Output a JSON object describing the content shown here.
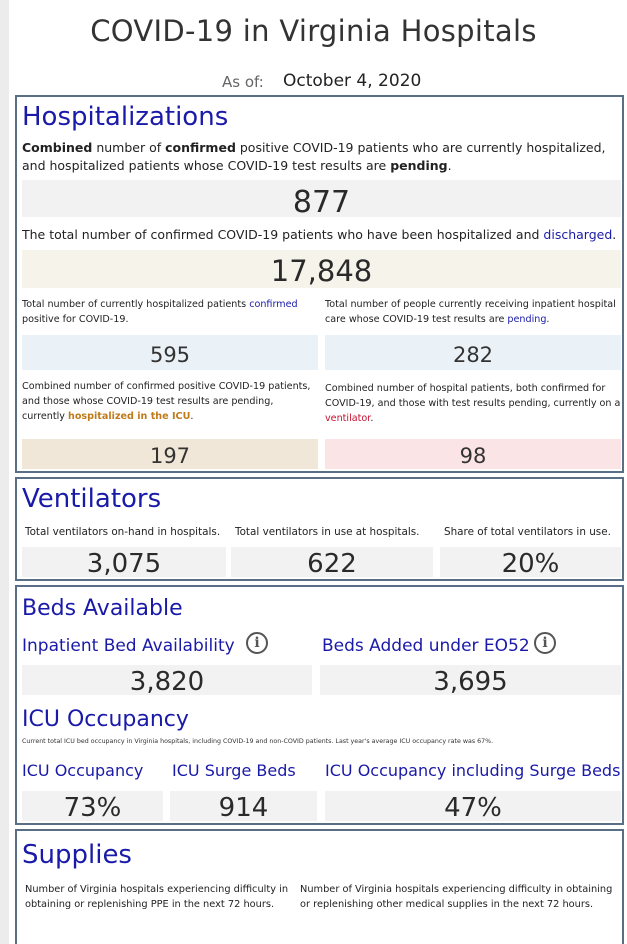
{
  "header": {
    "title": "COVID-19 in Virginia Hospitals",
    "as_of_label": "As of:",
    "as_of_date": "October 4, 2020"
  },
  "hospitalizations": {
    "title": "Hospitalizations",
    "combined_desc": [
      "Combined",
      " number of ",
      "confirmed",
      " positive COVID-19 patients who are currently hospitalized, and hospitalized patients whose COVID-19 test results are ",
      "pending",
      "."
    ],
    "combined_value": "877",
    "discharged_desc": [
      "The total number of confirmed COVID-19 patients who have been hospitalized and ",
      "discharged",
      "."
    ],
    "discharged_value": "17,848",
    "confirmed_desc": [
      "Total number of currently hospitalized patients ",
      "confirmed",
      " positive for COVID-19."
    ],
    "confirmed_value": "595",
    "pending_desc": [
      "Total number of people currently receiving inpatient hospital care whose COVID-19 test results are ",
      "pending",
      "."
    ],
    "pending_value": "282",
    "icu_desc": [
      "Combined number of confirmed positive COVID-19 patients, and those whose COVID-19 test results are pending, currently ",
      "hospitalized in the ICU",
      "."
    ],
    "icu_value": "197",
    "vent_desc": [
      "Combined number of hospital patients, both confirmed for COVID-19, and those with test results pending, currently on a ",
      "ventilator",
      "."
    ],
    "vent_value": "98"
  },
  "ventilators": {
    "title": "Ventilators",
    "onhand_label": "Total ventilators on-hand in hospitals.",
    "onhand_value": "3,075",
    "inuse_label": "Total ventilators in use at hospitals.",
    "inuse_value": "622",
    "share_label": "Share of total ventilators in use.",
    "share_value": "20%"
  },
  "beds": {
    "title": "Beds Available",
    "inpatient_label": "Inpatient Bed Availability",
    "inpatient_value": "3,820",
    "eo52_label": "Beds Added under EO52",
    "eo52_value": "3,695",
    "icu_title": "ICU Occupancy",
    "icu_note": "Current total ICU bed occupancy in Virginia hospitals, including COVID-19 and non-COVID patients. Last year's average ICU occupancy rate was 67%.",
    "icu_occ_label": "ICU Occupancy",
    "icu_occ_value": "73%",
    "surge_label": "ICU Surge Beds",
    "surge_value": "914",
    "icu_incl_label": "ICU Occupancy including Surge Beds",
    "icu_incl_value": "47%",
    "info_glyph": "i"
  },
  "supplies": {
    "title": "Supplies",
    "ppe_desc": "Number of Virginia hospitals experiencing difficulty in obtaining or replenishing PPE in the next 72 hours.",
    "other_desc": "Number of Virginia hospitals experiencing difficulty in obtaining or replenishing other medical supplies in the next 72 hours."
  },
  "colors": {
    "heading_blue": "#1a1aa8",
    "border": "#5a6f86",
    "grey_box": "#f2f2f2",
    "beige_box": "#f6f3ea",
    "blue_box": "#eaf2f8",
    "icu_box": "#f1e7d8",
    "vent_box": "#fbe4e6",
    "icu_text": "#c07a1a",
    "vent_text": "#c8102e"
  }
}
